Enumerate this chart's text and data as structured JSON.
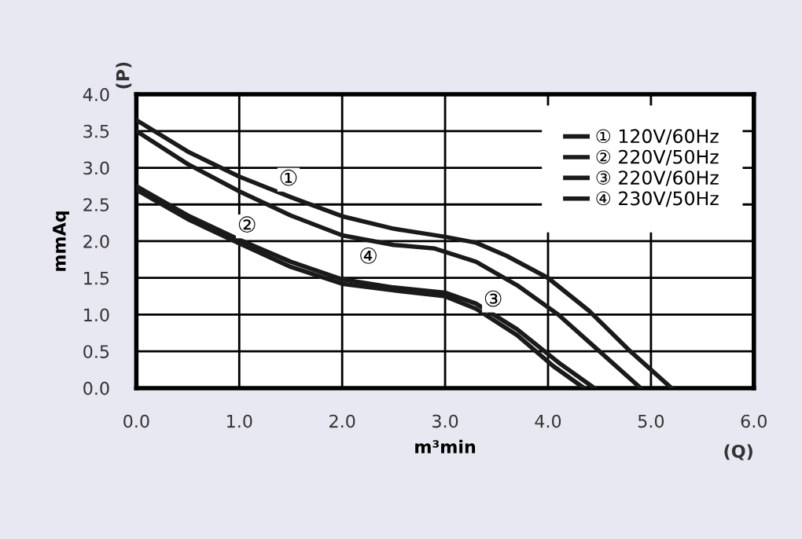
{
  "chart_data": {
    "type": "line",
    "xlabel": "m³min",
    "ylabel": "mmAq",
    "annotations": [
      {
        "text": "①",
        "x": 1.5,
        "y": 2.6
      },
      {
        "text": "②",
        "x": 1.5,
        "y": 2.35
      },
      {
        "text": "③",
        "x": 3.7,
        "y": 1.4
      },
      {
        "text": "④",
        "x": 2,
        "y": 1.48
      },
      "(P)",
      "(Q)"
    ],
    "series": [
      {
        "name": "① 120V/60Hz",
        "color": "#1a1a1a",
        "x": [
          0,
          0.5,
          1,
          1.5,
          2,
          2.5,
          3,
          3.3,
          3.6,
          4,
          4.4,
          4.8,
          5.2
        ],
        "values": [
          3.65,
          3.22,
          2.88,
          2.6,
          2.34,
          2.17,
          2.06,
          1.98,
          1.8,
          1.5,
          1.05,
          0.5,
          0
        ]
      },
      {
        "name": "② 220V/50Hz",
        "color": "#1a1a1a",
        "x": [
          0,
          0.5,
          1,
          1.5,
          2,
          2.5,
          2.9,
          3.3,
          3.7,
          4.1,
          4.5,
          4.9
        ],
        "values": [
          3.5,
          3.05,
          2.68,
          2.35,
          2.08,
          1.95,
          1.9,
          1.72,
          1.4,
          1.0,
          0.5,
          0
        ]
      },
      {
        "name": "③ 220V/60Hz",
        "color": "#1a1a1a",
        "x": [
          0,
          0.5,
          1,
          1.5,
          2,
          2.5,
          3,
          3.3,
          3.7,
          4.1,
          4.45
        ],
        "values": [
          2.75,
          2.35,
          2.02,
          1.72,
          1.48,
          1.37,
          1.3,
          1.15,
          0.8,
          0.35,
          0
        ]
      },
      {
        "name": "④ 230V/50Hz",
        "color": "#1a1a1a",
        "x": [
          0,
          0.5,
          1,
          1.5,
          2,
          2.5,
          3,
          3.3,
          3.7,
          4.05,
          4.35
        ],
        "values": [
          2.7,
          2.3,
          1.97,
          1.65,
          1.42,
          1.33,
          1.25,
          1.08,
          0.72,
          0.3,
          0
        ]
      }
    ],
    "xlim": [
      0,
      6
    ],
    "ylim": [
      0,
      4
    ],
    "xticks": [
      {
        "value": 0,
        "label": "0.0"
      },
      {
        "value": 1,
        "label": "1.0"
      },
      {
        "value": 2,
        "label": "2.0"
      },
      {
        "value": 3,
        "label": "3.0"
      },
      {
        "value": 4,
        "label": "4.0"
      },
      {
        "value": 5,
        "label": "5.0"
      },
      {
        "value": 6,
        "label": "6.0"
      }
    ],
    "yticks": [
      {
        "value": 0,
        "label": "0.0"
      },
      {
        "value": 0.5,
        "label": "0.5"
      },
      {
        "value": 1,
        "label": "1.0"
      },
      {
        "value": 1.5,
        "label": "1.5"
      },
      {
        "value": 2,
        "label": "2.0"
      },
      {
        "value": 2.5,
        "label": "2.5"
      },
      {
        "value": 3,
        "label": "3.0"
      },
      {
        "value": 3.5,
        "label": "3.5"
      },
      {
        "value": 4,
        "label": "4.0"
      }
    ],
    "grid": true,
    "legend": "top right",
    "line_style": "solid",
    "marker": "none"
  }
}
